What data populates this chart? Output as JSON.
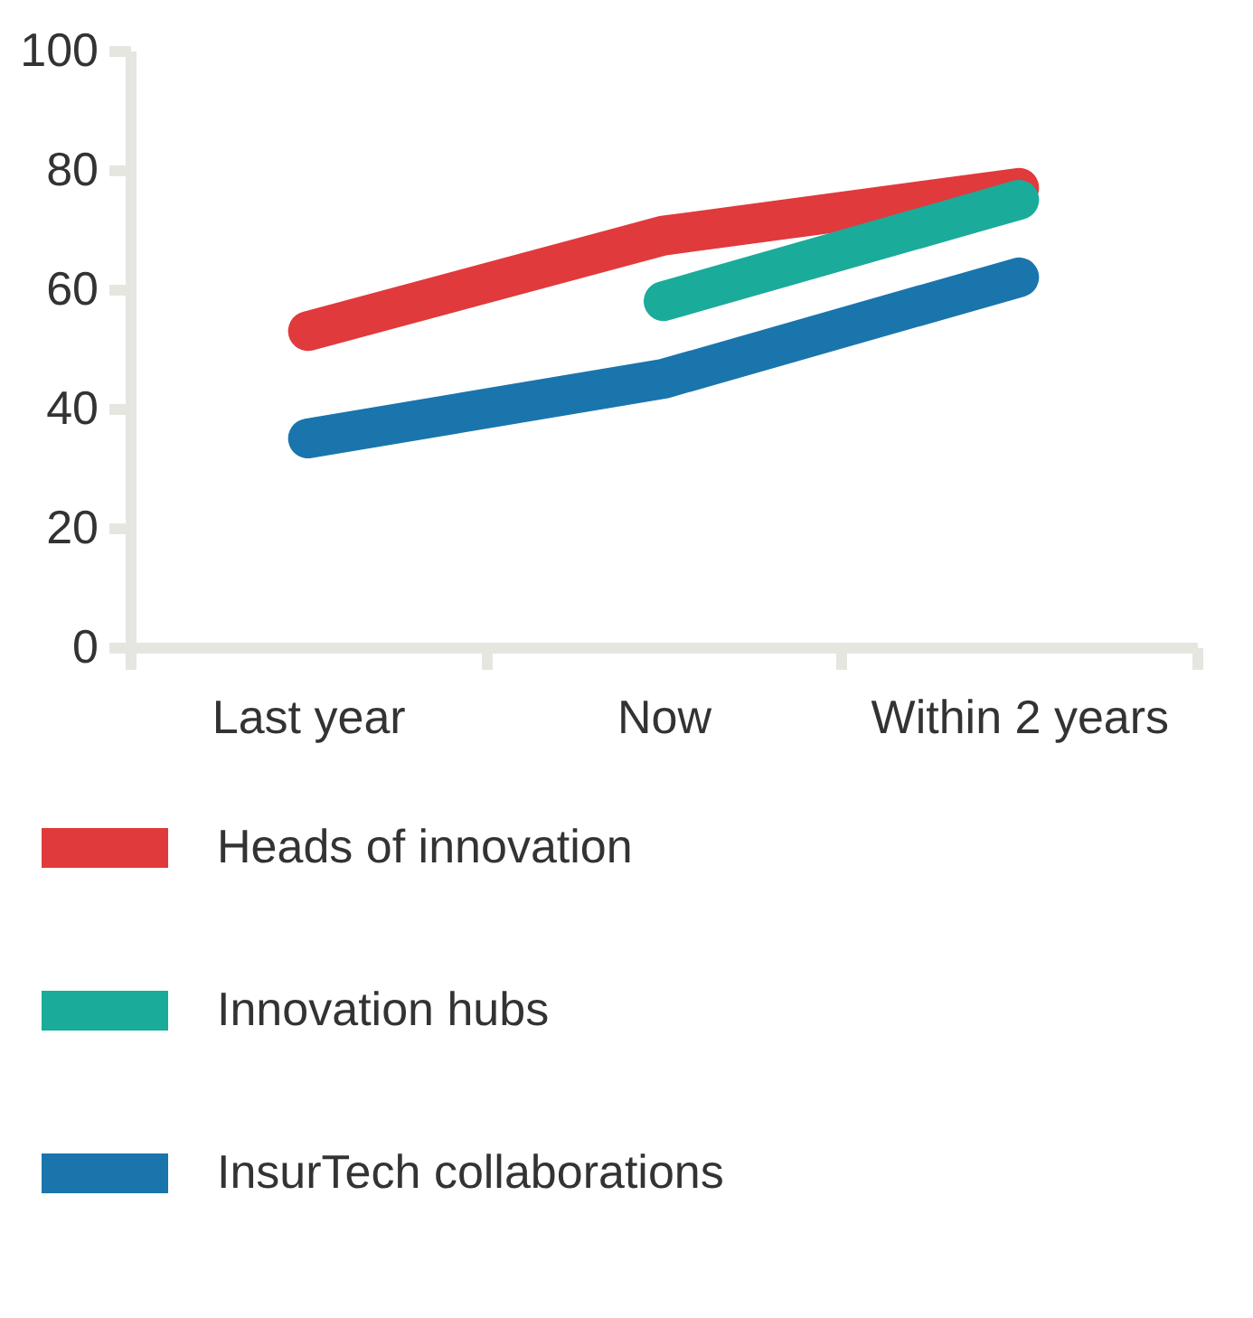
{
  "chart_data": {
    "type": "line",
    "categories": [
      "Last year",
      "Now",
      "Within 2 years"
    ],
    "series": [
      {
        "name": "Heads of innovation",
        "color": "#e03a3c",
        "values": [
          53,
          69,
          77
        ]
      },
      {
        "name": "Innovation hubs",
        "color": "#1aab9b",
        "values": [
          null,
          58,
          75
        ]
      },
      {
        "name": "InsurTech collaborations",
        "color": "#1a75ad",
        "values": [
          35,
          45,
          62
        ]
      }
    ],
    "ylim": [
      0,
      100
    ],
    "yticks": [
      0,
      20,
      40,
      60,
      80,
      100
    ],
    "grid": false,
    "legend": "bottom",
    "marker": "none",
    "line_style": "solid"
  }
}
